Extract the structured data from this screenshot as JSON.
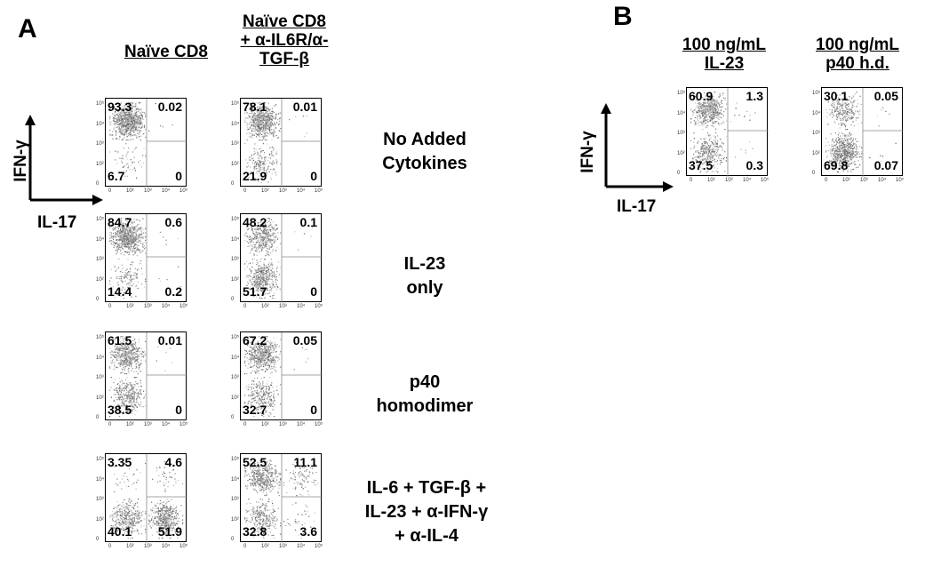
{
  "panels": {
    "a": "A",
    "b": "B"
  },
  "headers": {
    "naive_cd8": "Naïve CD8",
    "naive_cd8_block": [
      "Naïve CD8",
      "+ α-IL6R/α-",
      "TGF-β"
    ],
    "b_il23": [
      "100 ng/mL",
      "IL-23"
    ],
    "b_p40": [
      "100 ng/mL",
      "p40 h.d."
    ]
  },
  "row_labels": [
    [
      "No Added",
      "Cytokines"
    ],
    [
      "IL-23",
      "only"
    ],
    [
      "p40",
      "homodimer"
    ],
    [
      "IL-6 + TGF-β +",
      "IL-23 + α-IFN-γ",
      "+ α-IL-4"
    ]
  ],
  "axes": {
    "y_label": "IFN-γ",
    "x_label": "IL-17",
    "y_ticks": [
      "10⁵",
      "10⁴",
      "10³",
      "10²",
      "0"
    ],
    "x_ticks": [
      "0",
      "10²",
      "10³",
      "10⁴",
      "10⁵"
    ]
  },
  "chart_data": {
    "type": "scatter",
    "x_axis": "IL-17",
    "y_axis": "IFN-γ",
    "scale": "log",
    "plots": [
      {
        "panel": "A",
        "row": 0,
        "col": 0,
        "quadrants": {
          "ul": "93.3",
          "ur": "0.02",
          "ll": "6.7",
          "lr": "0"
        }
      },
      {
        "panel": "A",
        "row": 0,
        "col": 1,
        "quadrants": {
          "ul": "78.1",
          "ur": "0.01",
          "ll": "21.9",
          "lr": "0"
        }
      },
      {
        "panel": "A",
        "row": 1,
        "col": 0,
        "quadrants": {
          "ul": "84.7",
          "ur": "0.6",
          "ll": "14.4",
          "lr": "0.2"
        }
      },
      {
        "panel": "A",
        "row": 1,
        "col": 1,
        "quadrants": {
          "ul": "48.2",
          "ur": "0.1",
          "ll": "51.7",
          "lr": "0"
        }
      },
      {
        "panel": "A",
        "row": 2,
        "col": 0,
        "quadrants": {
          "ul": "61.5",
          "ur": "0.01",
          "ll": "38.5",
          "lr": "0"
        }
      },
      {
        "panel": "A",
        "row": 2,
        "col": 1,
        "quadrants": {
          "ul": "67.2",
          "ur": "0.05",
          "ll": "32.7",
          "lr": "0"
        }
      },
      {
        "panel": "A",
        "row": 3,
        "col": 0,
        "quadrants": {
          "ul": "3.35",
          "ur": "4.6",
          "ll": "40.1",
          "lr": "51.9"
        }
      },
      {
        "panel": "A",
        "row": 3,
        "col": 1,
        "quadrants": {
          "ul": "52.5",
          "ur": "11.1",
          "ll": "32.8",
          "lr": "3.6"
        }
      },
      {
        "panel": "B",
        "row": 0,
        "col": 0,
        "quadrants": {
          "ul": "60.9",
          "ur": "1.3",
          "ll": "37.5",
          "lr": "0.3"
        }
      },
      {
        "panel": "B",
        "row": 0,
        "col": 1,
        "quadrants": {
          "ul": "30.1",
          "ur": "0.05",
          "ll": "69.8",
          "lr": "0.07"
        }
      }
    ]
  }
}
